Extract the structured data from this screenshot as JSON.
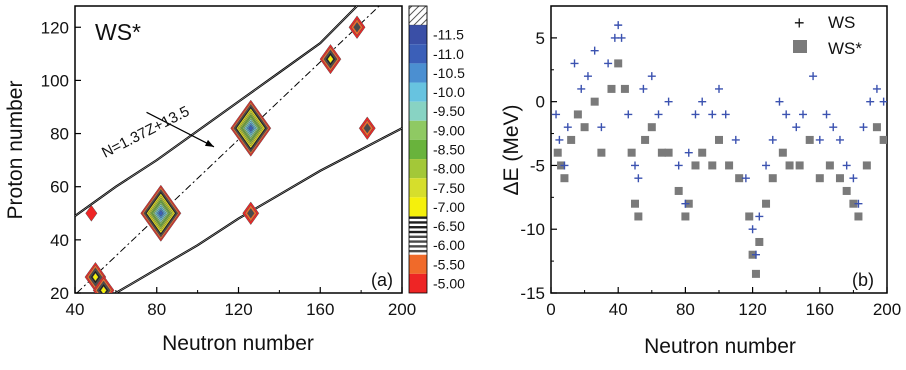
{
  "chart_data": [
    {
      "type": "heatmap",
      "panel_label": "(a)",
      "corner_title": "WS*",
      "xlabel": "Neutron number",
      "ylabel": "Proton number",
      "xlim": [
        40,
        200
      ],
      "ylim": [
        20,
        128
      ],
      "xticks": [
        40,
        80,
        120,
        160,
        200
      ],
      "yticks": [
        20,
        40,
        60,
        80,
        100,
        120
      ],
      "annotation": "N=1.37Z+13.5",
      "fit_line": {
        "slope": 1.37,
        "intercept": 13.5
      },
      "colorbar": {
        "labels": [
          "-11.5",
          "-11.0",
          "-10.5",
          "-10.0",
          "-9.50",
          "-9.00",
          "-8.50",
          "-8.00",
          "-7.50",
          "-7.00",
          "-6.50",
          "-6.00",
          "-5.50",
          "-5.00"
        ],
        "colors": [
          "#3a4fa6",
          "#3b5fb8",
          "#4b8fd1",
          "#67c3e0",
          "#88d3c3",
          "#8fc963",
          "#69b33c",
          "#a3c838",
          "#d6de2c",
          "#f5f00c",
          "#1f1f1f",
          "#4a4a4a",
          "#f06a2a",
          "#ee2525"
        ]
      },
      "islands": [
        {
          "n": 82,
          "z": 50,
          "level": -11.0
        },
        {
          "n": 126,
          "z": 82,
          "level": -11.0
        },
        {
          "n": 165,
          "z": 108,
          "level": -7.0
        },
        {
          "n": 178,
          "z": 120,
          "level": -6.0
        },
        {
          "n": 183,
          "z": 82,
          "level": -6.0
        },
        {
          "n": 126,
          "z": 50,
          "level": -6.0
        },
        {
          "n": 50,
          "z": 26,
          "level": -7.0
        },
        {
          "n": 54,
          "z": 21,
          "level": -7.0
        },
        {
          "n": 48,
          "z": 50,
          "level": -5.0
        }
      ],
      "boundary_upper": [
        [
          40,
          49
        ],
        [
          60,
          60
        ],
        [
          80,
          70
        ],
        [
          100,
          81
        ],
        [
          120,
          92
        ],
        [
          140,
          103
        ],
        [
          160,
          114
        ],
        [
          178,
          128
        ]
      ],
      "boundary_lower": [
        [
          60,
          20
        ],
        [
          80,
          29
        ],
        [
          100,
          38
        ],
        [
          120,
          48
        ],
        [
          140,
          57
        ],
        [
          160,
          66
        ],
        [
          180,
          74
        ],
        [
          200,
          82
        ]
      ]
    },
    {
      "type": "scatter",
      "panel_label": "(b)",
      "xlabel": "Neutron number",
      "ylabel": "ΔE (MeV)",
      "xlim": [
        0,
        200
      ],
      "ylim": [
        -15,
        7.5
      ],
      "xticks": [
        0,
        40,
        80,
        120,
        160,
        200
      ],
      "yticks": [
        -15,
        -10,
        -5,
        0,
        5
      ],
      "legend": "top-right",
      "series": [
        {
          "name": "WS",
          "color": "#3b52b0",
          "marker": "+",
          "points": [
            [
              3,
              -1
            ],
            [
              5,
              -3
            ],
            [
              8,
              -5
            ],
            [
              10,
              -2
            ],
            [
              14,
              3
            ],
            [
              18,
              1
            ],
            [
              22,
              2
            ],
            [
              26,
              4
            ],
            [
              30,
              -2
            ],
            [
              34,
              3
            ],
            [
              38,
              5
            ],
            [
              40,
              6
            ],
            [
              42,
              5
            ],
            [
              46,
              -1
            ],
            [
              50,
              -5
            ],
            [
              52,
              -6
            ],
            [
              55,
              1
            ],
            [
              60,
              2
            ],
            [
              64,
              -1
            ],
            [
              70,
              0
            ],
            [
              76,
              -5
            ],
            [
              80,
              -8
            ],
            [
              82,
              -4
            ],
            [
              86,
              -1
            ],
            [
              90,
              0
            ],
            [
              96,
              -1
            ],
            [
              100,
              1
            ],
            [
              104,
              -1
            ],
            [
              110,
              -3
            ],
            [
              116,
              -6
            ],
            [
              120,
              -10
            ],
            [
              122,
              -12
            ],
            [
              124,
              -9
            ],
            [
              128,
              -5
            ],
            [
              132,
              -3
            ],
            [
              136,
              0
            ],
            [
              140,
              -1
            ],
            [
              146,
              -2
            ],
            [
              150,
              -1
            ],
            [
              156,
              2
            ],
            [
              160,
              -3
            ],
            [
              164,
              -1
            ],
            [
              168,
              -2
            ],
            [
              172,
              -3
            ],
            [
              176,
              -5
            ],
            [
              180,
              -6
            ],
            [
              183,
              -8
            ],
            [
              186,
              -2
            ],
            [
              190,
              0
            ],
            [
              194,
              1
            ],
            [
              198,
              0
            ]
          ]
        },
        {
          "name": "WS*",
          "color": "#7a7a7a",
          "marker": "square",
          "points": [
            [
              4,
              -4
            ],
            [
              6,
              -5
            ],
            [
              8,
              -6
            ],
            [
              12,
              -3
            ],
            [
              16,
              -1
            ],
            [
              20,
              -2
            ],
            [
              26,
              0
            ],
            [
              30,
              -4
            ],
            [
              36,
              1
            ],
            [
              40,
              3
            ],
            [
              44,
              1
            ],
            [
              48,
              -4
            ],
            [
              50,
              -8
            ],
            [
              52,
              -9
            ],
            [
              56,
              -3
            ],
            [
              60,
              -2
            ],
            [
              66,
              -4
            ],
            [
              70,
              -4
            ],
            [
              76,
              -7
            ],
            [
              80,
              -9
            ],
            [
              82,
              -8
            ],
            [
              86,
              -5
            ],
            [
              90,
              -4
            ],
            [
              96,
              -5
            ],
            [
              100,
              -3
            ],
            [
              106,
              -5
            ],
            [
              112,
              -6
            ],
            [
              118,
              -9
            ],
            [
              120,
              -12
            ],
            [
              122,
              -13.5
            ],
            [
              124,
              -11
            ],
            [
              128,
              -8
            ],
            [
              132,
              -6
            ],
            [
              138,
              -4
            ],
            [
              142,
              -5
            ],
            [
              148,
              -5
            ],
            [
              154,
              -3
            ],
            [
              160,
              -6
            ],
            [
              166,
              -5
            ],
            [
              172,
              -6
            ],
            [
              176,
              -7
            ],
            [
              180,
              -8
            ],
            [
              183,
              -9
            ],
            [
              188,
              -5
            ],
            [
              194,
              -2
            ],
            [
              198,
              -3
            ]
          ]
        }
      ]
    }
  ]
}
